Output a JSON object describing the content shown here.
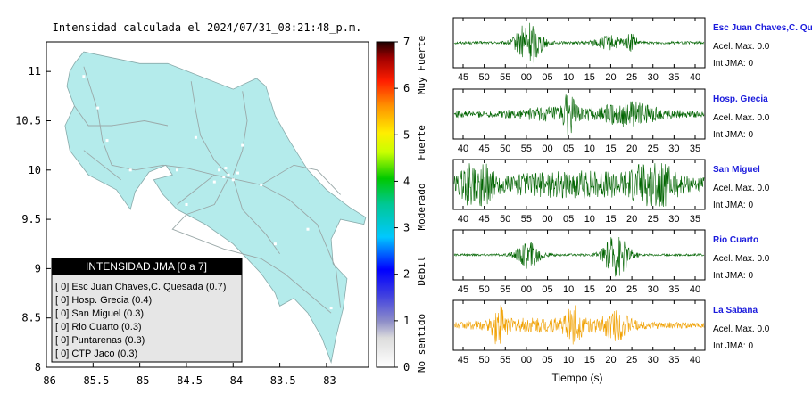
{
  "map": {
    "title": "Intensidad calculada el 2024/07/31_08:21:48_p.m.",
    "x_ticks": [
      "-86",
      "-85.5",
      "-85",
      "-84.5",
      "-84",
      "-83.5",
      "-83"
    ],
    "y_ticks": [
      "11",
      "10.5",
      "10",
      "9.5",
      "9",
      "8.5",
      "8"
    ],
    "xlim": [
      -86,
      -82.55
    ],
    "ylim": [
      8,
      11.3
    ],
    "land_color": "#b4ebeb",
    "road_color": "#9aa8a8",
    "legend": {
      "title": "INTENSIDAD JMA [0 a 7]",
      "entries": [
        "[ 0]  Esc Juan Chaves,C. Quesada (0.7)",
        "[ 0]  Hosp. Grecia (0.4)",
        "[ 0]  San Miguel (0.3)",
        "[ 0]  Rio Cuarto (0.3)",
        "[ 0]  Puntarenas (0.3)",
        "[ 0]  CTP Jaco (0.3)"
      ]
    }
  },
  "colorbar": {
    "ticks": [
      "0",
      "1",
      "2",
      "3",
      "4",
      "5",
      "6",
      "7"
    ],
    "range": [
      0,
      7
    ],
    "category_labels": [
      "No sentido",
      "Debil",
      "Moderado",
      "Fuerte",
      "Muy Fuerte"
    ]
  },
  "seismograms": {
    "xlabel": "Tiempo (s)",
    "stations": [
      {
        "name": "Esc Juan Chaves,C. Qu",
        "accel": "Acel. Max. 0.0",
        "jma": "Int JMA: 0",
        "color": "#006400",
        "ticks": [
          "45",
          "50",
          "55",
          "00",
          "05",
          "10",
          "15",
          "20",
          "25",
          "30",
          "35",
          "40"
        ],
        "bursts": [
          {
            "c": 0.3,
            "w": 0.05,
            "a": 1.0
          },
          {
            "c": 0.62,
            "w": 0.06,
            "a": 0.3
          },
          {
            "c": 0.71,
            "w": 0.02,
            "a": 0.4
          }
        ],
        "base": 0.06
      },
      {
        "name": "Hosp. Grecia",
        "accel": "Acel. Max. 0.0",
        "jma": "Int JMA: 0",
        "color": "#006400",
        "ticks": [
          "40",
          "45",
          "50",
          "55",
          "00",
          "05",
          "10",
          "15",
          "20",
          "25",
          "30",
          "35"
        ],
        "bursts": [
          {
            "c": 0.46,
            "w": 0.02,
            "a": 0.9
          },
          {
            "c": 0.7,
            "w": 0.12,
            "a": 0.45
          },
          {
            "c": 0.4,
            "w": 0.15,
            "a": 0.2
          }
        ],
        "base": 0.15
      },
      {
        "name": "San Miguel",
        "accel": "Acel. Max. 0.0",
        "jma": "Int JMA: 0",
        "color": "#006400",
        "ticks": [
          "40",
          "45",
          "50",
          "55",
          "00",
          "05",
          "10",
          "15",
          "20",
          "25",
          "30",
          "35"
        ],
        "bursts": [
          {
            "c": 0.09,
            "w": 0.06,
            "a": 0.9
          },
          {
            "c": 0.8,
            "w": 0.08,
            "a": 0.85
          },
          {
            "c": 0.5,
            "w": 0.3,
            "a": 0.35
          }
        ],
        "base": 0.3
      },
      {
        "name": "Rio Cuarto",
        "accel": "Acel. Max. 0.0",
        "jma": "Int JMA: 0",
        "color": "#006400",
        "ticks": [
          "45",
          "50",
          "55",
          "00",
          "05",
          "10",
          "15",
          "20",
          "25",
          "30",
          "35",
          "40"
        ],
        "bursts": [
          {
            "c": 0.3,
            "w": 0.05,
            "a": 0.6
          },
          {
            "c": 0.65,
            "w": 0.05,
            "a": 1.0
          }
        ],
        "base": 0.05
      },
      {
        "name": "La Sabana",
        "accel": "Acel. Max. 0.0",
        "jma": "Int JMA: 0",
        "color": "#f0a000",
        "ticks": [
          "45",
          "50",
          "55",
          "00",
          "05",
          "10",
          "15",
          "20",
          "25",
          "30",
          "35",
          "40"
        ],
        "bursts": [
          {
            "c": 0.18,
            "w": 0.025,
            "a": 1.0
          },
          {
            "c": 0.48,
            "w": 0.03,
            "a": 0.6
          },
          {
            "c": 0.65,
            "w": 0.05,
            "a": 0.5
          },
          {
            "c": 0.4,
            "w": 0.3,
            "a": 0.25
          }
        ],
        "base": 0.12
      }
    ]
  }
}
